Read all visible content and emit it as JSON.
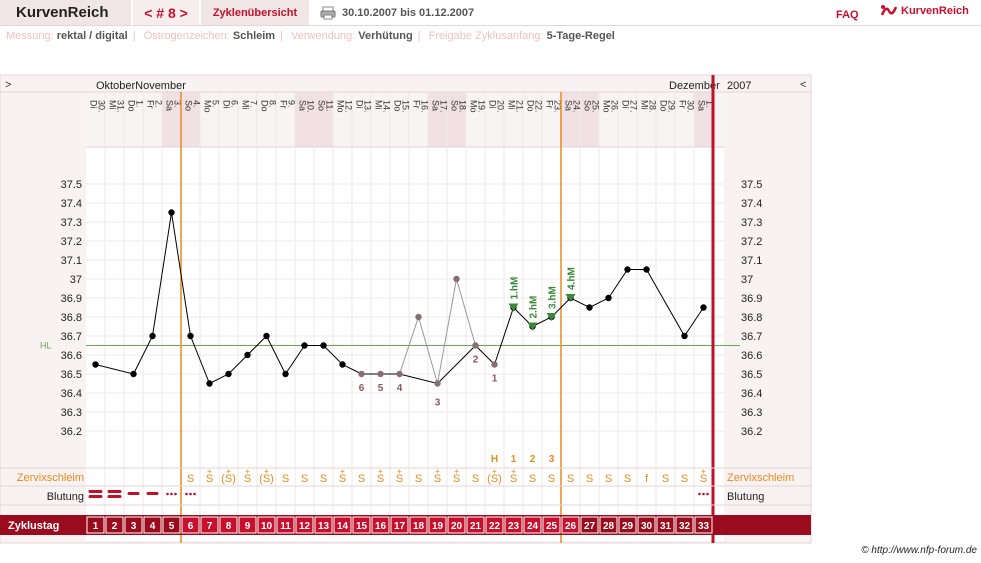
{
  "app": {
    "title": "KurvenReich",
    "cycle_nav": "< # 8 >",
    "overview_tab": "Zyklenübersicht",
    "date_range": "30.10.2007 bis 01.12.2007",
    "faq": "FAQ",
    "brand": "KurvenReich"
  },
  "settings": [
    {
      "label": "Messung:",
      "value": "rektal / digital"
    },
    {
      "label": "Östrogenzeichen:",
      "value": "Schleim"
    },
    {
      "label": "Verwendung:",
      "value": "Verhütung"
    },
    {
      "label": "Freigabe Zyklusanfang:",
      "value": "5-Tage-Regel"
    }
  ],
  "header": {
    "expand_left": ">",
    "month1": "Oktober",
    "month2": "November",
    "month3": "Dezember",
    "year": "2007",
    "expand_right": "<"
  },
  "days": [
    {
      "d": "30.",
      "wd": "Di"
    },
    {
      "d": "31.",
      "wd": "Mi"
    },
    {
      "d": "1.",
      "wd": "Do"
    },
    {
      "d": "2.",
      "wd": "Fr"
    },
    {
      "d": "3.",
      "wd": "Sa"
    },
    {
      "d": "4.",
      "wd": "So"
    },
    {
      "d": "5.",
      "wd": "Mo"
    },
    {
      "d": "6.",
      "wd": "Di"
    },
    {
      "d": "7.",
      "wd": "Mi"
    },
    {
      "d": "8.",
      "wd": "Do"
    },
    {
      "d": "9.",
      "wd": "Fr"
    },
    {
      "d": "10.",
      "wd": "Sa"
    },
    {
      "d": "11.",
      "wd": "So"
    },
    {
      "d": "12.",
      "wd": "Mo"
    },
    {
      "d": "13.",
      "wd": "Di"
    },
    {
      "d": "14.",
      "wd": "Mi"
    },
    {
      "d": "15.",
      "wd": "Do"
    },
    {
      "d": "16.",
      "wd": "Fr"
    },
    {
      "d": "17.",
      "wd": "Sa"
    },
    {
      "d": "18.",
      "wd": "So"
    },
    {
      "d": "19.",
      "wd": "Mo"
    },
    {
      "d": "20.",
      "wd": "Di"
    },
    {
      "d": "21.",
      "wd": "Mi"
    },
    {
      "d": "22.",
      "wd": "Do"
    },
    {
      "d": "23.",
      "wd": "Fr"
    },
    {
      "d": "24.",
      "wd": "Sa"
    },
    {
      "d": "25.",
      "wd": "So"
    },
    {
      "d": "26.",
      "wd": "Mo"
    },
    {
      "d": "27.",
      "wd": "Di"
    },
    {
      "d": "28.",
      "wd": "Mi"
    },
    {
      "d": "29.",
      "wd": "Do"
    },
    {
      "d": "30.",
      "wd": "Fr"
    },
    {
      "d": "1.",
      "wd": "Sa"
    }
  ],
  "weekend_columns": [
    5,
    6,
    12,
    13,
    19,
    20,
    26,
    27,
    33
  ],
  "y_ticks": [
    "37.5",
    "37.4",
    "37.3",
    "37.2",
    "37.1",
    "37",
    "36.9",
    "36.8",
    "36.7",
    "36.6",
    "36.5",
    "36.4",
    "36.3",
    "36.2"
  ],
  "hl_label": "HL",
  "rows": {
    "cervix": "Zervixschleim",
    "bleeding": "Blutung",
    "cycle_day": "Zyklustag"
  },
  "cervix_codes": [
    "",
    "",
    "",
    "",
    "",
    "S",
    "S",
    "(S)",
    "S",
    "(S)",
    "S",
    "S",
    "S",
    "S",
    "S",
    "S",
    "S",
    "S",
    "S",
    "S",
    "S",
    "(S)",
    "S",
    "S",
    "S",
    "S",
    "S",
    "S",
    "S",
    "f",
    "S",
    "S",
    "S"
  ],
  "cervix_plus": [
    false,
    false,
    false,
    false,
    false,
    false,
    true,
    true,
    true,
    true,
    false,
    false,
    false,
    true,
    false,
    true,
    true,
    false,
    true,
    true,
    false,
    true,
    true,
    false,
    false,
    false,
    false,
    false,
    false,
    false,
    false,
    false,
    true
  ],
  "bleeding": [
    "heavy",
    "heavy",
    "medium",
    "medium",
    "light",
    "light",
    "",
    "",
    "",
    "",
    "",
    "",
    "",
    "",
    "",
    "",
    "",
    "",
    "",
    "",
    "",
    "",
    "",
    "",
    "",
    "",
    "",
    "",
    "",
    "",
    "",
    "",
    "light"
  ],
  "peak_labels": [
    {
      "col": 22,
      "text": "H"
    },
    {
      "col": 23,
      "text": "1"
    },
    {
      "col": 24,
      "text": "2"
    },
    {
      "col": 25,
      "text": "3"
    }
  ],
  "markers": {
    "first_line_col": 6,
    "cycle_end_col": 33
  },
  "chart_data": {
    "type": "line",
    "ylim": [
      36.1,
      37.6
    ],
    "hl": 36.65,
    "temps": [
      36.55,
      null,
      36.5,
      36.7,
      37.35,
      36.7,
      36.45,
      36.5,
      36.6,
      36.7,
      36.5,
      36.65,
      36.65,
      36.55,
      36.5,
      36.5,
      36.5,
      36.8,
      36.45,
      37.0,
      36.65,
      36.55,
      36.85,
      36.75,
      36.8,
      36.9,
      36.85,
      36.9,
      37.05,
      37.05,
      null,
      36.7,
      36.85
    ],
    "excluded": [
      18,
      20
    ],
    "low_labels": [
      {
        "col": 15,
        "text": "6"
      },
      {
        "col": 16,
        "text": "5"
      },
      {
        "col": 17,
        "text": "4"
      },
      {
        "col": 19,
        "text": "3"
      },
      {
        "col": 21,
        "text": "2"
      },
      {
        "col": 22,
        "text": "1"
      }
    ],
    "high_markers": [
      {
        "col": 23,
        "text": "1.hM"
      },
      {
        "col": 24,
        "text": "2.hM"
      },
      {
        "col": 25,
        "text": "3.hM"
      },
      {
        "col": 26,
        "text": "4.hM"
      }
    ]
  },
  "copyright": "© http://www.nfp-forum.de"
}
